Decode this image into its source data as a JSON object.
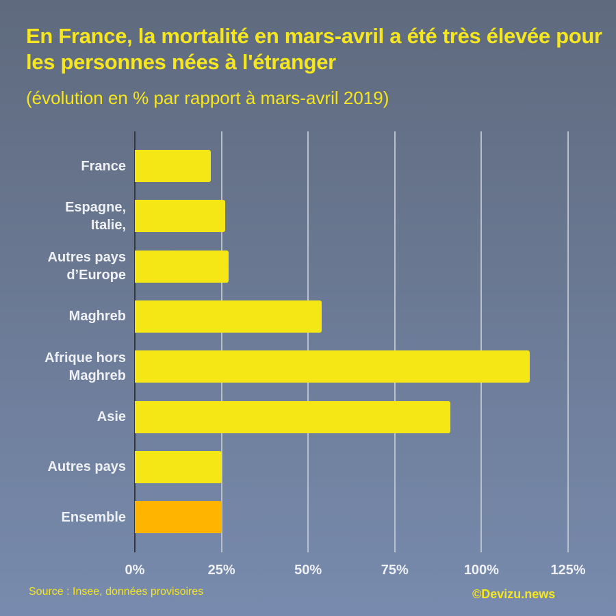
{
  "header": {
    "title": "En France, la mortalité en mars-avril a été très élevée pour les personnes nées à l'étranger",
    "subtitle": "(évolution en % par rapport à mars-avril 2019)"
  },
  "footer": {
    "source": "Source : Insee, données provisoires",
    "credit": "©Devizu.news"
  },
  "colors": {
    "bar_default": "#f5e616",
    "bar_highlight": "#ffb400",
    "title": "#f5e620",
    "background_top": "#5f6a7e",
    "background_bottom": "#788bae"
  },
  "axis": {
    "ticks": [
      "0%",
      "25%",
      "50%",
      "75%",
      "100%",
      "125%"
    ]
  },
  "chart_data": {
    "type": "bar",
    "orientation": "horizontal",
    "title": "En France, la mortalité en mars-avril a été très élevée pour les personnes nées à l'étranger",
    "subtitle": "(évolution en % par rapport à mars-avril 2019)",
    "categories": [
      "France",
      "Espagne, Italie,",
      "Autres pays d’Europe",
      "Maghreb",
      "Afrique hors Maghreb",
      "Asie",
      "Autres pays",
      "Ensemble"
    ],
    "values": [
      22,
      26,
      27,
      54,
      114,
      91,
      25,
      25
    ],
    "highlight": "Ensemble",
    "xlabel": "",
    "ylabel": "",
    "xlim": [
      0,
      125
    ],
    "xticks": [
      0,
      25,
      50,
      75,
      100,
      125
    ],
    "grid": true,
    "legend": null,
    "source": "Source : Insee, données provisoires"
  },
  "labels": [
    {
      "line1": "France",
      "line2": ""
    },
    {
      "line1": "Espagne,",
      "line2": "Italie,"
    },
    {
      "line1": "Autres pays",
      "line2": "d’Europe"
    },
    {
      "line1": "Maghreb",
      "line2": ""
    },
    {
      "line1": "Afrique hors",
      "line2": "Maghreb"
    },
    {
      "line1": "Asie",
      "line2": ""
    },
    {
      "line1": "Autres pays",
      "line2": ""
    },
    {
      "line1": "Ensemble",
      "line2": ""
    }
  ]
}
